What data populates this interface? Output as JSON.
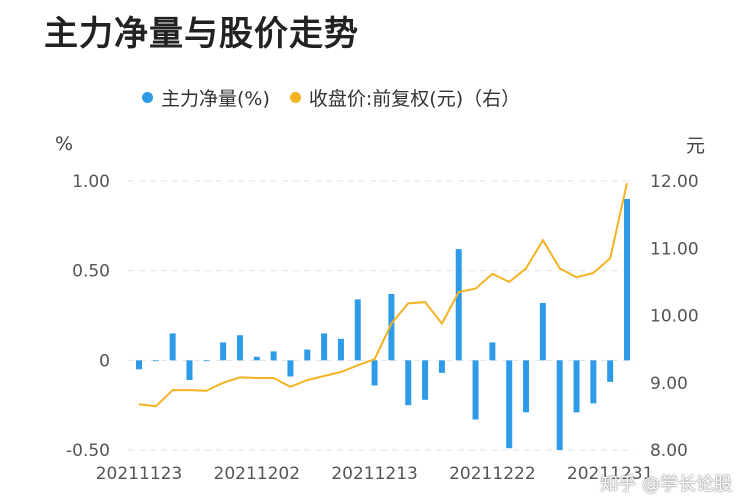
{
  "title": "主力净量与股价走势",
  "watermark": "知乎 @学长论股",
  "chart_data": {
    "type": "bar+line",
    "legend": [
      {
        "name": "主力净量(%)",
        "color": "#2e9be8",
        "marker": "dot"
      },
      {
        "name": "收盘价:前复权(元)（右）",
        "color": "#f5b323",
        "marker": "dot"
      }
    ],
    "left_axis": {
      "unit": "%",
      "ticks": [
        "1.00",
        "0.50",
        "0",
        "-0.50"
      ],
      "ylim": [
        -0.5,
        1.0
      ]
    },
    "right_axis": {
      "unit": "元",
      "ticks": [
        "12.00",
        "11.00",
        "10.00",
        "9.00",
        "8.00"
      ],
      "ylim": [
        8.0,
        12.0
      ]
    },
    "x_ticks": [
      "20211123",
      "20211202",
      "20211213",
      "20211222",
      "20211231"
    ],
    "x_tick_positions": [
      0,
      7,
      14,
      21,
      28
    ],
    "series": [
      {
        "name": "主力净量(%)",
        "type": "bar",
        "axis": "left",
        "values": [
          -0.05,
          0.0,
          0.15,
          -0.11,
          0.0,
          0.1,
          0.14,
          0.02,
          0.05,
          -0.09,
          0.06,
          0.15,
          0.12,
          0.34,
          -0.14,
          0.37,
          -0.25,
          -0.22,
          -0.07,
          0.62,
          -0.33,
          0.1,
          -0.49,
          -0.29,
          0.32,
          -0.5,
          -0.29,
          -0.24,
          -0.12,
          0.9
        ]
      },
      {
        "name": "收盘价:前复权(元)（右）",
        "type": "line",
        "axis": "left_right",
        "values": [
          8.68,
          8.65,
          8.89,
          8.89,
          8.88,
          9.0,
          9.08,
          9.07,
          9.07,
          8.94,
          9.04,
          9.1,
          9.16,
          9.26,
          9.35,
          9.88,
          10.18,
          10.2,
          9.88,
          10.35,
          10.4,
          10.62,
          10.5,
          10.7,
          11.12,
          10.7,
          10.57,
          10.63,
          10.85,
          11.97
        ]
      }
    ]
  }
}
